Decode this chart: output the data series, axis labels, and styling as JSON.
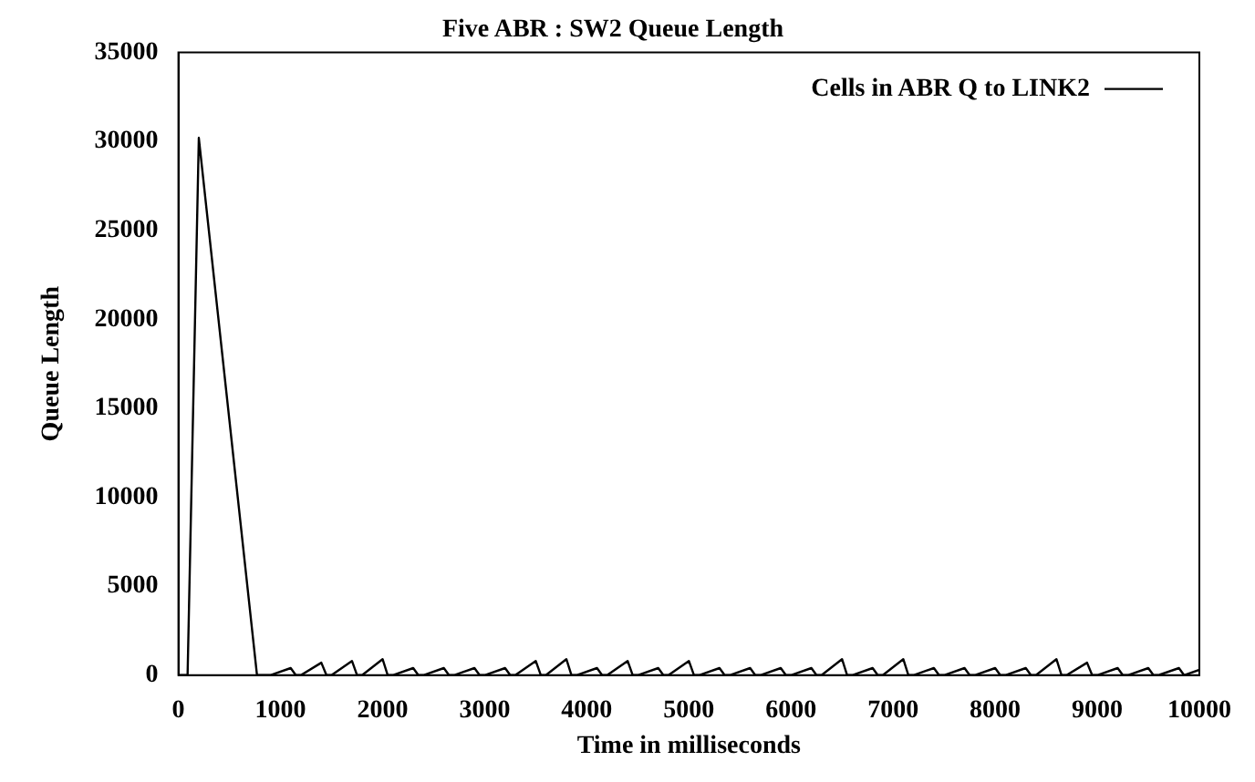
{
  "chart_data": {
    "type": "line",
    "title": "Five ABR : SW2 Queue Length",
    "xlabel": "Time in milliseconds",
    "ylabel": "Queue Length",
    "x": [
      0,
      90,
      200,
      770,
      900,
      1100,
      1150,
      1200,
      1400,
      1450,
      1500,
      1700,
      1750,
      1800,
      2000,
      2050,
      2100,
      2300,
      2350,
      2400,
      2600,
      2650,
      2700,
      2900,
      2950,
      3000,
      3200,
      3250,
      3300,
      3500,
      3550,
      3600,
      3800,
      3850,
      3900,
      4100,
      4150,
      4200,
      4400,
      4450,
      4500,
      4700,
      4750,
      4800,
      5000,
      5050,
      5100,
      5300,
      5350,
      5400,
      5600,
      5650,
      5700,
      5900,
      5950,
      6000,
      6200,
      6250,
      6300,
      6500,
      6550,
      6600,
      6800,
      6850,
      6900,
      7100,
      7150,
      7200,
      7400,
      7450,
      7500,
      7700,
      7750,
      7800,
      8000,
      8050,
      8100,
      8300,
      8350,
      8400,
      8600,
      8650,
      8700,
      8900,
      8950,
      9000,
      9200,
      9250,
      9300,
      9500,
      9550,
      9600,
      9800,
      9850,
      10000
    ],
    "series": [
      {
        "name": "Cells in ABR Q to LINK2",
        "color": "#000000",
        "values": [
          0,
          0,
          30200,
          0,
          0,
          400,
          0,
          0,
          700,
          0,
          0,
          800,
          0,
          0,
          900,
          0,
          0,
          400,
          0,
          0,
          400,
          0,
          0,
          400,
          0,
          0,
          400,
          0,
          0,
          800,
          0,
          0,
          900,
          0,
          0,
          400,
          0,
          0,
          800,
          0,
          0,
          400,
          0,
          0,
          800,
          0,
          0,
          400,
          0,
          0,
          400,
          0,
          0,
          400,
          0,
          0,
          400,
          0,
          0,
          900,
          0,
          0,
          400,
          0,
          0,
          900,
          0,
          0,
          400,
          0,
          0,
          400,
          0,
          0,
          400,
          0,
          0,
          400,
          0,
          0,
          900,
          0,
          0,
          700,
          0,
          0,
          400,
          0,
          0,
          400,
          0,
          0,
          400,
          0,
          300
        ]
      }
    ],
    "xlim": [
      0,
      10000
    ],
    "xticks": [
      0,
      1000,
      2000,
      3000,
      4000,
      5000,
      6000,
      7000,
      8000,
      9000,
      10000
    ],
    "ylim": [
      0,
      35000
    ],
    "yticks": [
      0,
      5000,
      10000,
      15000,
      20000,
      25000,
      30000,
      35000
    ],
    "grid": false,
    "legend": "top right",
    "marker": "none",
    "line_style": "solid"
  }
}
